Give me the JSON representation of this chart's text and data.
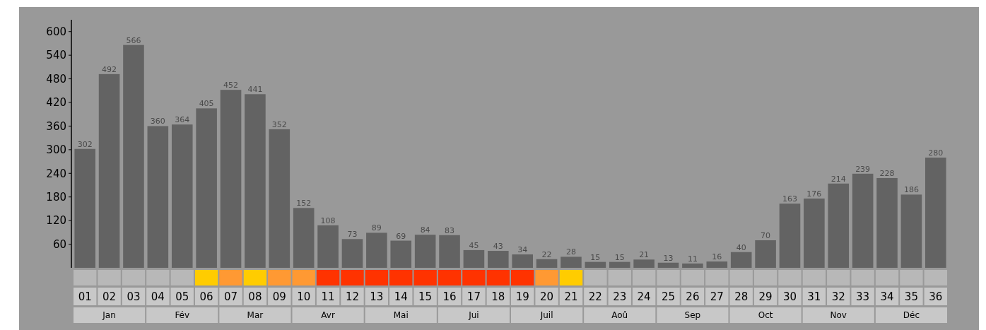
{
  "chart_data": {
    "type": "bar",
    "categories": [
      "01",
      "02",
      "03",
      "04",
      "05",
      "06",
      "07",
      "08",
      "09",
      "10",
      "11",
      "12",
      "13",
      "14",
      "15",
      "16",
      "17",
      "18",
      "19",
      "20",
      "21",
      "22",
      "23",
      "24",
      "25",
      "26",
      "27",
      "28",
      "29",
      "30",
      "31",
      "32",
      "33",
      "34",
      "35",
      "36"
    ],
    "values": [
      302,
      492,
      566,
      360,
      364,
      405,
      452,
      441,
      352,
      152,
      108,
      73,
      89,
      69,
      84,
      83,
      45,
      43,
      34,
      22,
      28,
      15,
      15,
      21,
      13,
      11,
      16,
      40,
      70,
      163,
      176,
      214,
      239,
      228,
      186,
      280
    ],
    "color": "#636363",
    "ylim": [
      0,
      630
    ],
    "yticks": [
      60,
      120,
      180,
      240,
      300,
      360,
      420,
      480,
      540,
      600
    ],
    "data_labels": true,
    "grid": false,
    "annotations": [
      "Jan",
      "Fév",
      "Mar",
      "Avr",
      "Mai",
      "Jui",
      "Juil",
      "Aoû",
      "Sep",
      "Oct",
      "Nov",
      "Déc"
    ]
  }
}
